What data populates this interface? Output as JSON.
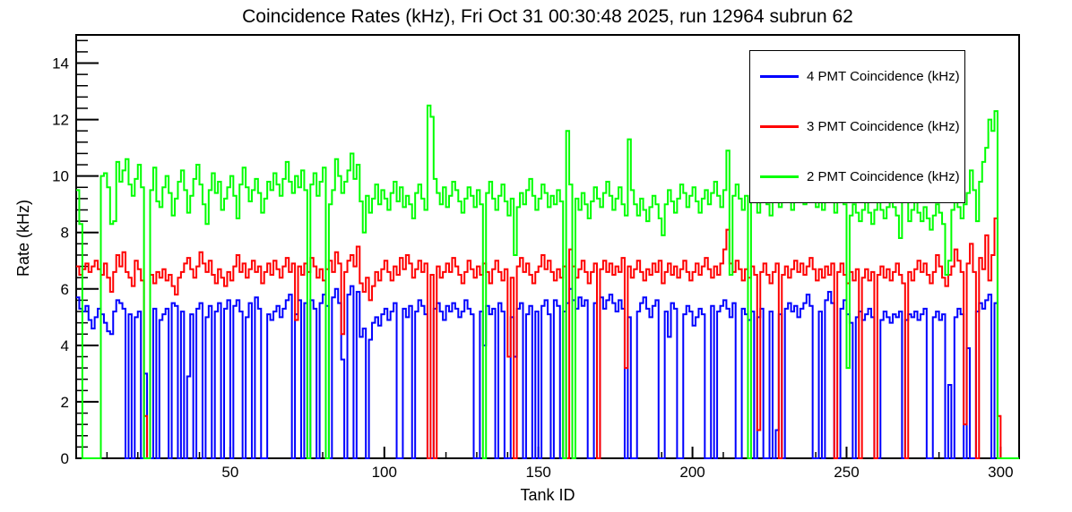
{
  "title": "Coincidence Rates (kHz), Fri Oct 31 00:30:48 2025, run 12964 subrun 62",
  "chart_data": {
    "type": "line",
    "subtype": "step-histogram",
    "title": "Coincidence Rates (kHz), Fri Oct 31 00:30:48 2025, run 12964 subrun 62",
    "xlabel": "Tank ID",
    "ylabel": "Rate (kHz)",
    "xlim": [
      0,
      306
    ],
    "ylim": [
      0,
      15
    ],
    "grid": false,
    "legend_position": "top-right",
    "x_major_ticks": [
      50,
      100,
      150,
      200,
      250,
      300
    ],
    "x_minor_step": 10,
    "y_major_ticks": [
      0,
      2,
      4,
      6,
      8,
      10,
      12,
      14
    ],
    "y_minor_step": 0.4,
    "x_bin_start": 1,
    "series": [
      {
        "id": "4pmt",
        "name": "4 PMT Coincidence (kHz)",
        "color": "#0000ff",
        "values": [
          5.7,
          5.3,
          5.2,
          5.4,
          4.9,
          4.6,
          5.0,
          5.3,
          5.1,
          4.8,
          4.5,
          4.4,
          5.2,
          5.6,
          5.5,
          5.3,
          0,
          5.1,
          0,
          5.0,
          5.2,
          0,
          3.0,
          0,
          0,
          5.3,
          0,
          4.9,
          5.1,
          5.3,
          0,
          5.5,
          5.4,
          0,
          5.2,
          0,
          2.9,
          5.1,
          0,
          5.3,
          5.5,
          0,
          5.0,
          5.4,
          0,
          5.2,
          5.5,
          0,
          5.3,
          5.6,
          0,
          5.4,
          5.6,
          5.2,
          0,
          5.0,
          5.5,
          0,
          5.7,
          5.3,
          0,
          0,
          5.1,
          4.9,
          5.2,
          5.4,
          5.0,
          5.3,
          5.6,
          5.8,
          0,
          5.1,
          5.6,
          0,
          5.5,
          0,
          5.6,
          5.3,
          0,
          5.5,
          5.8,
          5.4,
          0,
          5.7,
          6.0,
          5.5,
          3.5,
          0,
          5.8,
          6.1,
          0,
          5.9,
          4.3,
          4.6,
          0,
          4.2,
          4.8,
          5.0,
          4.7,
          5.1,
          5.3,
          4.9,
          5.2,
          5.5,
          0,
          0,
          5.3,
          5.0,
          5.4,
          0,
          5.2,
          5.6,
          5.4,
          5.1,
          0,
          0,
          5.3,
          5.5,
          5.2,
          4.9,
          5.4,
          5.2,
          5.5,
          5.3,
          5.0,
          5.2,
          5.6,
          5.3,
          5.1,
          0,
          0,
          5.2,
          4.0,
          5.4,
          5.1,
          5.3,
          0,
          5.5,
          5.2,
          0,
          0,
          5.0,
          3.6,
          5.3,
          5.5,
          0,
          5.1,
          5.4,
          0,
          5.2,
          0,
          5.4,
          5.6,
          5.1,
          0,
          5.6,
          5.4,
          0,
          5.2,
          5.5,
          6.0,
          5.6,
          5.3,
          5.7,
          5.4,
          5.6,
          0,
          0,
          5.5,
          0,
          5.7,
          5.3,
          5.6,
          5.8,
          5.5,
          5.2,
          5.6,
          5.3,
          0,
          5.0,
          0,
          0,
          5.2,
          5.5,
          5.7,
          5.3,
          5.0,
          5.4,
          5.6,
          0,
          0,
          5.2,
          4.3,
          5.5,
          5.3,
          0,
          0,
          5.1,
          5.4,
          5.2,
          4.7,
          5.0,
          5.3,
          5.1,
          0,
          0,
          5.4,
          0,
          5.2,
          5.4,
          5.6,
          5.3,
          5.0,
          5.5,
          0,
          0,
          5.3,
          5.1,
          4.9,
          5.2,
          0,
          5.0,
          5.3,
          0,
          0,
          5.2,
          0,
          1.0,
          5.1,
          0,
          5.3,
          5.5,
          5.2,
          5.4,
          5.0,
          5.3,
          5.5,
          5.8,
          5.4,
          0,
          0,
          5.2,
          0,
          5.6,
          5.9,
          5.5,
          0,
          0,
          5.3,
          5.6,
          5.1,
          4.8,
          0,
          5.0,
          5.2,
          4.9,
          5.1,
          5.3,
          5.0,
          0,
          0,
          4.9,
          5.2,
          5.0,
          4.8,
          5.1,
          5.0,
          5.2,
          0,
          4.9,
          5.1,
          5.0,
          5.2,
          4.9,
          5.1,
          5.3,
          0,
          0,
          5.0,
          5.2,
          4.9,
          5.1,
          0,
          2.6,
          0,
          5.0,
          5.3,
          5.1,
          0,
          3.9,
          0,
          0,
          5.2,
          5.5,
          5.3,
          5.6,
          5.8,
          0,
          5.5,
          0,
          0,
          0,
          0,
          0,
          0,
          0
        ]
      },
      {
        "id": "3pmt",
        "name": "3 PMT Coincidence (kHz)",
        "color": "#ff0000",
        "values": [
          6.8,
          6.5,
          6.7,
          6.9,
          6.6,
          6.8,
          7.0,
          6.7,
          6.5,
          6.9,
          6.4,
          5.9,
          6.6,
          7.2,
          6.8,
          7.3,
          6.6,
          6.4,
          6.1,
          7.0,
          6.7,
          6.3,
          1.5,
          0,
          6.5,
          6.2,
          6.6,
          6.4,
          6.7,
          6.3,
          6.5,
          6.1,
          5.8,
          6.4,
          6.6,
          6.9,
          7.1,
          6.7,
          6.4,
          6.8,
          7.3,
          6.9,
          6.6,
          7.0,
          6.5,
          6.2,
          6.7,
          6.4,
          6.1,
          6.6,
          6.3,
          6.8,
          7.2,
          6.6,
          6.9,
          6.4,
          6.7,
          7.0,
          6.6,
          6.8,
          6.2,
          6.6,
          6.9,
          6.5,
          7.0,
          6.7,
          6.4,
          6.8,
          7.1,
          6.6,
          6.9,
          4.9,
          6.8,
          6.5,
          6.9,
          6.6,
          7.1,
          6.8,
          6.4,
          6.7,
          6.3,
          6.7,
          7.0,
          6.6,
          7.3,
          6.9,
          4.4,
          6.6,
          7.0,
          7.2,
          6.8,
          7.5,
          6.2,
          5.9,
          6.4,
          5.6,
          6.1,
          6.6,
          6.3,
          6.7,
          7.0,
          6.6,
          6.3,
          6.8,
          6.5,
          7.1,
          6.7,
          7.2,
          6.9,
          6.4,
          6.7,
          7.0,
          6.6,
          6.9,
          0,
          6.5,
          0,
          6.8,
          6.4,
          6.6,
          6.9,
          6.6,
          7.1,
          6.8,
          6.5,
          6.2,
          6.6,
          7.0,
          6.7,
          6.4,
          6.8,
          6.5,
          6.9,
          6.6,
          6.2,
          6.7,
          7.0,
          6.6,
          6.3,
          6.7,
          3.6,
          6.4,
          0,
          6.8,
          7.1,
          6.6,
          6.9,
          6.5,
          6.2,
          6.6,
          6.8,
          7.2,
          6.7,
          7.0,
          6.6,
          6.3,
          6.7,
          6.4,
          6.8,
          0,
          7.4,
          6.8,
          6.4,
          6.7,
          7.0,
          6.6,
          6.2,
          6.6,
          6.9,
          0,
          6.7,
          7.0,
          6.6,
          6.9,
          6.5,
          6.8,
          6.6,
          7.1,
          3.2,
          6.8,
          6.4,
          6.7,
          7.0,
          6.6,
          6.3,
          6.7,
          6.5,
          6.9,
          6.6,
          7.0,
          6.2,
          6.6,
          6.9,
          6.5,
          6.8,
          6.4,
          6.7,
          7.0,
          6.6,
          6.3,
          6.6,
          6.9,
          6.5,
          6.8,
          7.1,
          6.7,
          6.4,
          6.8,
          6.5,
          6.9,
          7.4,
          8.1,
          6.9,
          6.6,
          7.0,
          6.7,
          6.3,
          6.7,
          6.4,
          6.8,
          6.5,
          1.0,
          6.6,
          6.9,
          6.5,
          6.2,
          6.6,
          6.9,
          0,
          6.5,
          6.8,
          6.4,
          6.7,
          7.0,
          6.6,
          6.9,
          6.5,
          6.8,
          7.1,
          6.7,
          6.3,
          6.7,
          6.4,
          6.8,
          6.5,
          6.9,
          0,
          6.6,
          6.9,
          6.5,
          6.2,
          6.6,
          6.3,
          6.7,
          0,
          6.4,
          6.7,
          6.3,
          6.6,
          0,
          6.5,
          6.8,
          6.4,
          6.7,
          6.3,
          6.6,
          6.9,
          6.5,
          6.2,
          0,
          6.6,
          6.3,
          6.7,
          7.0,
          6.6,
          6.9,
          6.5,
          6.2,
          6.6,
          7.2,
          6.8,
          6.4,
          6.1,
          6.5,
          6.8,
          7.4,
          7.0,
          6.6,
          1.2,
          6.9,
          7.6,
          6.6,
          0,
          7.1,
          6.7,
          7.9,
          6.3,
          7.2,
          8.5,
          1.5,
          0,
          0,
          0,
          0,
          0,
          0
        ]
      },
      {
        "id": "2pmt",
        "name": "2 PMT Coincidence (kHz)",
        "color": "#00ff00",
        "values": [
          9.5,
          8.3,
          0,
          0,
          0,
          0,
          0,
          0,
          10.0,
          10.1,
          9.6,
          8.3,
          8.4,
          10.5,
          9.8,
          10.2,
          10.6,
          9.7,
          9.3,
          9.9,
          10.4,
          9.6,
          0,
          0,
          9.5,
          10.3,
          9.1,
          8.9,
          9.6,
          10.0,
          9.4,
          8.6,
          9.2,
          9.8,
          10.2,
          9.5,
          8.7,
          9.3,
          9.9,
          10.4,
          9.7,
          9.0,
          8.3,
          9.5,
          10.1,
          9.4,
          9.8,
          8.8,
          9.2,
          9.6,
          10.0,
          9.3,
          8.5,
          9.7,
          10.3,
          9.6,
          9.1,
          9.5,
          9.9,
          9.4,
          8.7,
          9.2,
          9.8,
          9.5,
          10.1,
          9.7,
          9.3,
          9.9,
          10.5,
          9.8,
          9.4,
          10.0,
          9.6,
          10.2,
          9.5,
          0,
          9.7,
          10.1,
          9.3,
          9.8,
          10.3,
          0,
          9.0,
          9.5,
          10.6,
          10.0,
          9.4,
          9.8,
          10.2,
          10.8,
          9.9,
          10.4,
          9.1,
          8.0,
          9.3,
          8.7,
          9.2,
          9.7,
          9.0,
          9.5,
          9.2,
          8.8,
          9.4,
          9.8,
          9.1,
          9.6,
          8.9,
          9.3,
          9.0,
          8.5,
          9.4,
          9.7,
          9.2,
          8.8,
          12.5,
          12.1,
          9.9,
          9.4,
          9.0,
          9.6,
          8.9,
          9.3,
          9.8,
          9.5,
          9.1,
          8.7,
          9.2,
          9.6,
          9.3,
          8.9,
          9.5,
          9.0,
          0,
          9.4,
          9.8,
          9.2,
          8.8,
          9.3,
          9.7,
          9.1,
          8.6,
          9.2,
          7.2,
          8.9,
          9.4,
          9.0,
          9.5,
          9.9,
          9.3,
          8.8,
          9.2,
          9.7,
          9.4,
          8.9,
          9.3,
          9.0,
          9.5,
          9.1,
          0,
          11.6,
          9.7,
          0,
          9.2,
          8.8,
          9.4,
          9.0,
          8.5,
          9.1,
          9.6,
          9.2,
          8.9,
          9.4,
          9.8,
          9.3,
          8.8,
          9.2,
          9.6,
          9.0,
          8.6,
          11.3,
          9.5,
          9.0,
          8.6,
          9.2,
          8.8,
          8.4,
          8.9,
          9.3,
          9.0,
          8.5,
          7.9,
          9.0,
          9.5,
          9.1,
          8.7,
          9.2,
          9.7,
          9.4,
          8.9,
          9.3,
          9.6,
          9.1,
          8.7,
          9.2,
          9.5,
          9.0,
          9.4,
          9.8,
          9.3,
          8.9,
          9.5,
          10.9,
          6.5,
          9.3,
          9.7,
          9.2,
          8.8,
          9.3,
          0,
          9.5,
          9.1,
          8.7,
          9.2,
          9.6,
          9.0,
          8.6,
          9.1,
          9.4,
          8.9,
          9.3,
          9.7,
          9.2,
          8.8,
          9.3,
          9.8,
          9.4,
          9.0,
          9.5,
          9.9,
          9.4,
          8.9,
          9.3,
          8.8,
          9.2,
          9.6,
          9.1,
          8.7,
          9.2,
          9.5,
          9.0,
          3.2,
          8.6,
          9.0,
          8.7,
          8.4,
          8.8,
          9.1,
          8.7,
          8.3,
          8.8,
          9.2,
          8.8,
          8.5,
          8.9,
          9.3,
          8.9,
          8.6,
          7.8,
          10.2,
          9.6,
          8.4,
          8.8,
          9.2,
          8.7,
          8.4,
          8.9,
          8.5,
          8.1,
          8.6,
          9.0,
          8.7,
          8.3,
          6.5,
          7.0,
          8.8,
          9.3,
          8.9,
          8.5,
          9.0,
          9.4,
          10.2,
          9.5,
          8.4,
          9.8,
          10.5,
          11.0,
          12.0,
          11.6,
          12.3,
          0,
          0,
          0,
          0,
          0,
          0,
          0
        ]
      }
    ]
  }
}
